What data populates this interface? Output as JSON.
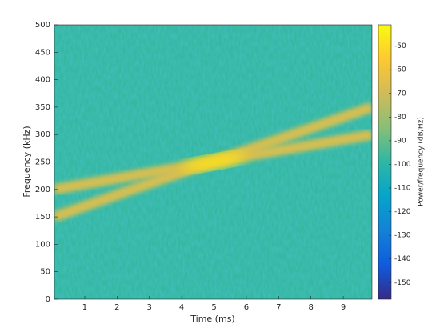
{
  "chart_data": {
    "type": "spectrogram",
    "xlabel": "Time (ms)",
    "ylabel": "Frequency (kHz)",
    "colorbar_label": "Power/frequency (dB/Hz)",
    "xlim": [
      0.06,
      9.89
    ],
    "xticks": [
      1,
      2,
      3,
      4,
      5,
      6,
      7,
      8,
      9
    ],
    "ylim": [
      0,
      500
    ],
    "yticks": [
      0,
      50,
      100,
      150,
      200,
      250,
      300,
      350,
      400,
      450,
      500
    ],
    "clim": [
      -157,
      -41
    ],
    "cticks": [
      -150,
      -140,
      -130,
      -120,
      -110,
      -100,
      -90,
      -80,
      -70,
      -60,
      -50
    ],
    "colormap": [
      "#352a87",
      "#0f5cdd",
      "#1481d6",
      "#06a4ca",
      "#2eb7a4",
      "#87bf77",
      "#d1bb59",
      "#fec832",
      "#f9fb0e"
    ],
    "background_level": -98,
    "series": [
      {
        "x": [
          0.06,
          2.5,
          5,
          7.5,
          9.89
        ],
        "values": [
          200,
          225.3,
          250.5,
          275.8,
          300
        ],
        "level": -66
      },
      {
        "x": [
          0.06,
          2.5,
          5,
          7.5,
          9.89
        ],
        "values": [
          150,
          200.5,
          251,
          301.5,
          350
        ],
        "level": -66
      }
    ],
    "peak": {
      "x": 5,
      "y": 250,
      "level": -48
    }
  }
}
